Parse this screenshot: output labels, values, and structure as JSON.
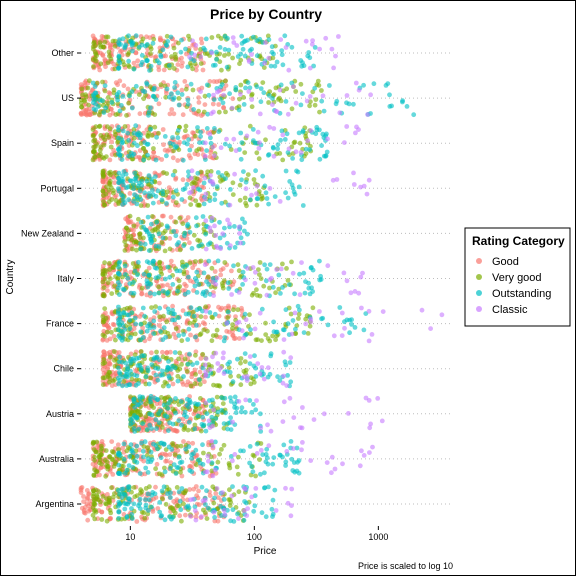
{
  "chart_data": {
    "type": "scatter",
    "title": "Price by Country",
    "xlabel": "Price",
    "ylabel": "Country",
    "caption": "Price is scaled to log 10",
    "x_scale": "log10",
    "xlim": [
      4,
      4000
    ],
    "x_ticks": [
      10,
      100,
      1000
    ],
    "x_tick_labels": [
      "10",
      "100",
      "1000"
    ],
    "categories": [
      "Argentina",
      "Australia",
      "Austria",
      "Chile",
      "France",
      "Italy",
      "New Zealand",
      "Portugal",
      "Spain",
      "US",
      "Other"
    ],
    "grid": "horizontal dotted",
    "legend": {
      "title": "Rating Category",
      "placement": "right",
      "entries": [
        "Good",
        "Very good",
        "Outstanding",
        "Classic"
      ],
      "colors": [
        "#F8766D",
        "#7CAE00",
        "#00BFC4",
        "#C77CFF"
      ]
    },
    "series": [
      {
        "name": "Good",
        "price_range_by_country": {
          "Argentina": [
            4,
            60
          ],
          "Australia": [
            5,
            50
          ],
          "Austria": [
            10,
            40
          ],
          "Chile": [
            6,
            40
          ],
          "France": [
            6,
            80
          ],
          "Italy": [
            6,
            70
          ],
          "New Zealand": [
            9,
            30
          ],
          "Portugal": [
            6,
            40
          ],
          "Spain": [
            5,
            50
          ],
          "US": [
            4,
            70
          ],
          "Other": [
            5,
            40
          ]
        }
      },
      {
        "name": "Very good",
        "price_range_by_country": {
          "Argentina": [
            5,
            100
          ],
          "Australia": [
            5,
            120
          ],
          "Austria": [
            10,
            60
          ],
          "Chile": [
            6,
            100
          ],
          "France": [
            6,
            300
          ],
          "Italy": [
            6,
            200
          ],
          "New Zealand": [
            9,
            50
          ],
          "Portugal": [
            6,
            120
          ],
          "Spain": [
            5,
            300
          ],
          "US": [
            4,
            350
          ],
          "Other": [
            5,
            150
          ]
        }
      },
      {
        "name": "Outstanding",
        "price_range_by_country": {
          "Argentina": [
            8,
            150
          ],
          "Australia": [
            8,
            250
          ],
          "Austria": [
            10,
            120
          ],
          "Chile": [
            8,
            200
          ],
          "France": [
            8,
            800
          ],
          "Italy": [
            8,
            350
          ],
          "New Zealand": [
            12,
            90
          ],
          "Portugal": [
            8,
            250
          ],
          "Spain": [
            8,
            450
          ],
          "US": [
            5,
            2000
          ],
          "Other": [
            8,
            350
          ]
        }
      },
      {
        "name": "Classic",
        "price_range_by_country": {
          "Argentina": [
            30,
            200
          ],
          "Australia": [
            40,
            900
          ],
          "Austria": [
            40,
            1100
          ],
          "Chile": [
            40,
            200
          ],
          "France": [
            40,
            3300
          ],
          "Italy": [
            40,
            800
          ],
          "New Zealand": [
            40,
            80
          ],
          "Portugal": [
            30,
            850
          ],
          "Spain": [
            40,
            700
          ],
          "US": [
            30,
            900
          ],
          "Other": [
            30,
            500
          ]
        }
      }
    ]
  }
}
